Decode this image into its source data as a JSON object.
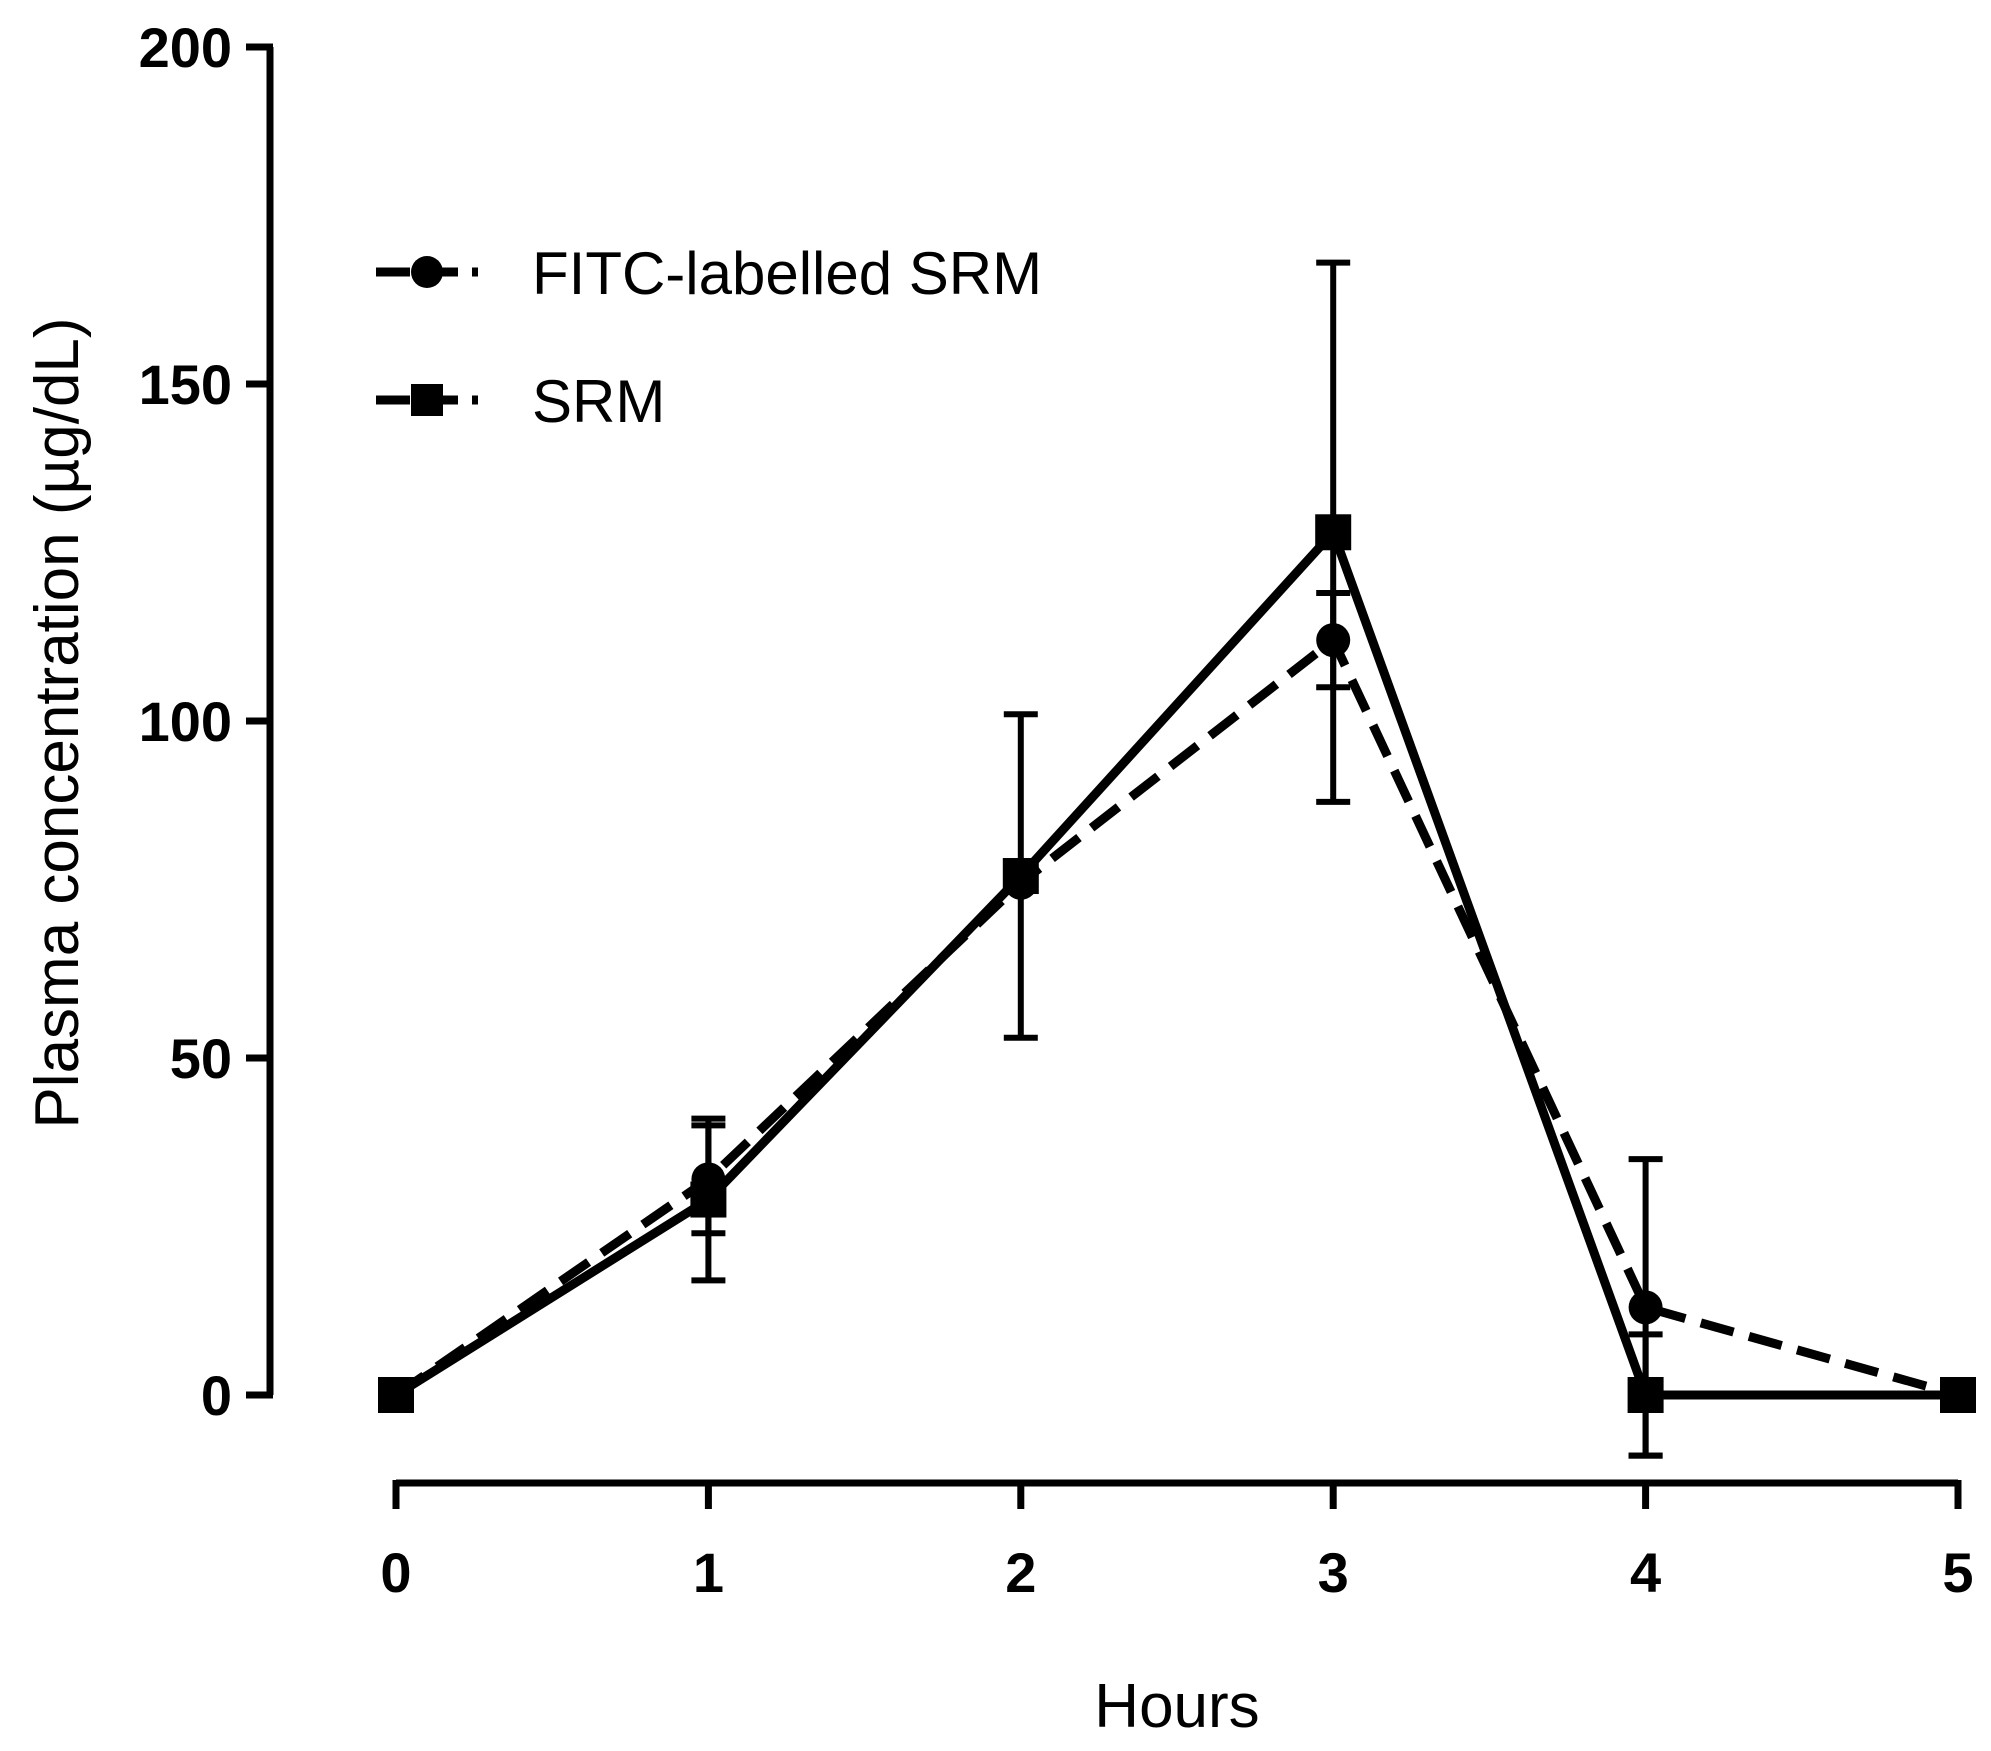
{
  "chart_data": {
    "type": "line",
    "title": "",
    "xlabel": "Hours",
    "ylabel": "Plasma concentration (µg/dL)",
    "xlim": [
      0,
      5
    ],
    "ylim": [
      0,
      200
    ],
    "x_ticks": [
      "0",
      "1",
      "2",
      "3",
      "4",
      "5"
    ],
    "y_ticks": [
      "0",
      "50",
      "100",
      "150",
      "200"
    ],
    "grid": false,
    "legend_position": "top-left",
    "series": [
      {
        "name": "FITC-labelled SRM",
        "line_style": "dashed",
        "marker": "circle",
        "x": [
          0,
          1,
          2,
          3,
          4,
          5
        ],
        "y": [
          0,
          32,
          76,
          112,
          13,
          0
        ],
        "error": [
          0,
          8,
          0,
          7,
          22,
          0
        ]
      },
      {
        "name": "SRM",
        "line_style": "solid",
        "marker": "square",
        "x": [
          0,
          1,
          2,
          3,
          4,
          5
        ],
        "y": [
          0,
          29,
          77,
          128,
          0,
          0
        ],
        "error": [
          0,
          12,
          24,
          40,
          9,
          0
        ]
      }
    ]
  }
}
